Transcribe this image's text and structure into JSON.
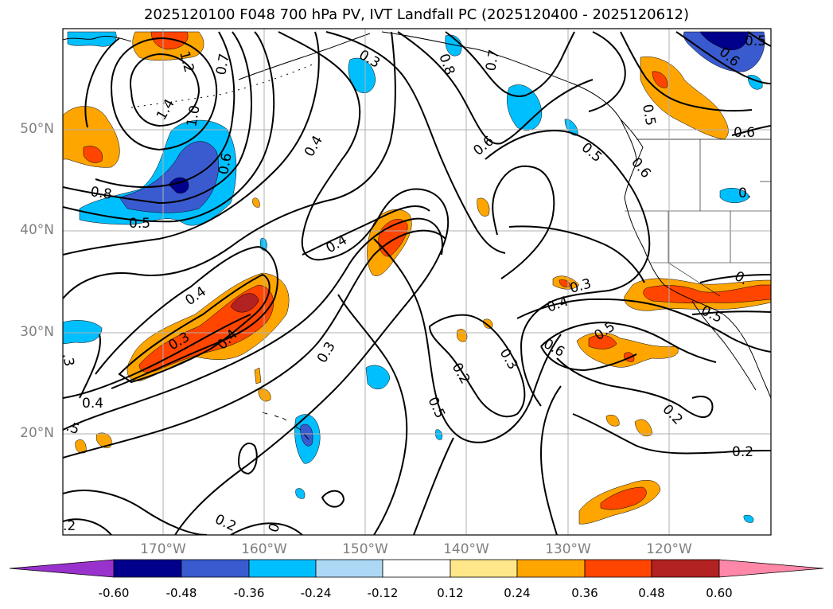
{
  "title": "2025120100 F048 700 hPa PV, IVT Landfall PC (2025120400 - 2025120612)",
  "map": {
    "variable": "700 hPa PV",
    "overlay": "IVT Landfall PC",
    "lat_ticks": [
      "50°N",
      "40°N",
      "30°N",
      "20°N"
    ],
    "lon_ticks": [
      "170°W",
      "160°W",
      "150°W",
      "140°W",
      "130°W",
      "120°W"
    ],
    "contour_labels": [
      {
        "text": "0.3",
        "name": "contour-label-0-3-north-pacific"
      },
      {
        "text": "0.8",
        "name": "contour-label-0-8-gulf-alaska"
      },
      {
        "text": "0.7",
        "name": "contour-label-0-7-gulf-alaska"
      },
      {
        "text": "0.7",
        "name": "contour-label-0-7-aleutian"
      },
      {
        "text": "1.2",
        "name": "contour-label-1-2-low-center"
      },
      {
        "text": "1.4",
        "name": "contour-label-1-4-low-center"
      },
      {
        "text": "1.0",
        "name": "contour-label-1-0-low-center"
      },
      {
        "text": "0.6",
        "name": "contour-label-0-6-low-south"
      },
      {
        "text": "0.8",
        "name": "contour-label-0-8-west"
      },
      {
        "text": "0.5",
        "name": "contour-label-0-5-west"
      },
      {
        "text": "0.4",
        "name": "contour-label-0-4-central-north"
      },
      {
        "text": "0.4",
        "name": "contour-label-0-4-central"
      },
      {
        "text": "0.6",
        "name": "contour-label-0-6-bc-coast"
      },
      {
        "text": "0.5",
        "name": "contour-label-0-5-bc-coast"
      },
      {
        "text": "0.6",
        "name": "contour-label-0-6-bc-inland"
      },
      {
        "text": "0.5",
        "name": "contour-label-0-5-northeast"
      },
      {
        "text": "0.6",
        "name": "contour-label-0-6-northeast"
      },
      {
        "text": "0.6",
        "name": "contour-label-0-6-far-northeast"
      },
      {
        "text": "0.5",
        "name": "contour-label-0-5-top-right"
      },
      {
        "text": "0.",
        "name": "contour-label-0-partial-great-basin"
      },
      {
        "text": "0.4",
        "name": "contour-label-0-4-subtropical-west"
      },
      {
        "text": "0.3",
        "name": "contour-label-0-3-subtropical-west"
      },
      {
        "text": "0.4",
        "name": "contour-label-0-4-subtropical-mid"
      },
      {
        "text": "0.3",
        "name": "contour-label-0-3-central-south"
      },
      {
        "text": "0.3",
        "name": "contour-label-0-3-offshore-ca"
      },
      {
        "text": "0.4",
        "name": "contour-label-0-4-offshore-ca"
      },
      {
        "text": "0.6",
        "name": "contour-label-0-6-offshore-ca"
      },
      {
        "text": "0.5",
        "name": "contour-label-0-5-offshore-ca"
      },
      {
        "text": "0.5",
        "name": "contour-label-0-5-socal"
      },
      {
        "text": "0.",
        "name": "contour-label-0-partial-socal"
      },
      {
        "text": "0.2",
        "name": "contour-label-0-2-trough-center"
      },
      {
        "text": "0.3",
        "name": "contour-label-0-3-trough-east"
      },
      {
        "text": "0.5",
        "name": "contour-label-0-5-trough-south"
      },
      {
        "text": "0.2",
        "name": "contour-label-0-2-baja"
      },
      {
        "text": "0.2",
        "name": "contour-label-0-2-east-edge"
      },
      {
        "text": "0.4",
        "name": "contour-label-0-4-west-edge"
      },
      {
        "text": ".3",
        "name": "contour-label-0-3-west-edge"
      },
      {
        "text": ".5",
        "name": "contour-label-0-5-west-edge"
      },
      {
        "text": ".2",
        "name": "contour-label-0-2-southwest-corner"
      },
      {
        "text": "0.2",
        "name": "contour-label-0-2-south"
      },
      {
        "text": "0",
        "name": "contour-label-0-partial-south"
      }
    ]
  },
  "colorbar": {
    "ticks": [
      "-0.60",
      "-0.48",
      "-0.36",
      "-0.24",
      "-0.12",
      "0.12",
      "0.24",
      "0.36",
      "0.48",
      "0.60"
    ],
    "colors": [
      "#9932cc",
      "#00008b",
      "#3a5bcf",
      "#00bfff",
      "#add8f5",
      "#ffffff",
      "#ffe78a",
      "#ffa500",
      "#ff4500",
      "#b22222",
      "#ff88a8"
    ]
  }
}
